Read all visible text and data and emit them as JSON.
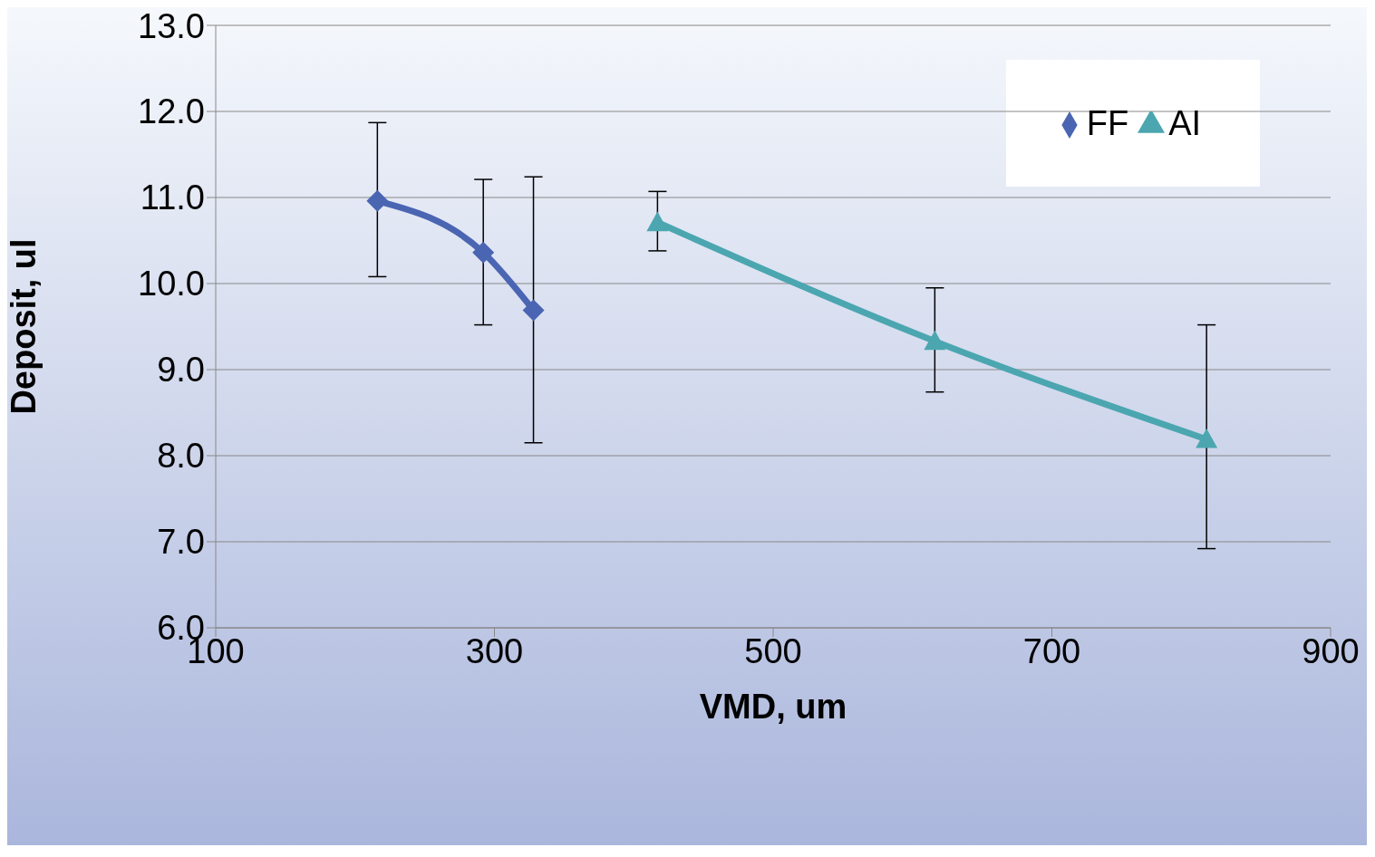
{
  "chart_data": {
    "type": "line",
    "xlabel": "VMD, um",
    "ylabel": "Deposit, ul",
    "xlim": [
      100,
      900
    ],
    "xticks": [
      100,
      300,
      500,
      700,
      900
    ],
    "ylim": [
      6,
      13
    ],
    "yticks": [
      {
        "value": 6,
        "label": "6.0"
      },
      {
        "value": 7,
        "label": "7.0"
      },
      {
        "value": 8,
        "label": "8.0"
      },
      {
        "value": 9,
        "label": "9.0"
      },
      {
        "value": 10,
        "label": "10.0"
      },
      {
        "value": 11,
        "label": "11.0"
      },
      {
        "value": 12,
        "label": "12.0"
      },
      {
        "value": 13,
        "label": "13.0"
      }
    ],
    "grid": "y",
    "legend": "top right",
    "series": [
      {
        "name": "FF",
        "color": "#4a65b2",
        "marker": "diamond",
        "x": [
          216,
          292,
          328
        ],
        "values": [
          10.96,
          10.36,
          9.69
        ],
        "errors": [
          [
            10.08,
            11.87
          ],
          [
            9.52,
            11.21
          ],
          [
            8.15,
            11.24
          ]
        ]
      },
      {
        "name": "AI",
        "color": "#4ba6b0",
        "marker": "triangle",
        "x": [
          417,
          616,
          811
        ],
        "values": [
          10.71,
          9.33,
          8.19
        ],
        "errors": [
          [
            10.38,
            11.07
          ],
          [
            8.74,
            9.95
          ],
          [
            6.92,
            9.52
          ]
        ]
      }
    ]
  }
}
